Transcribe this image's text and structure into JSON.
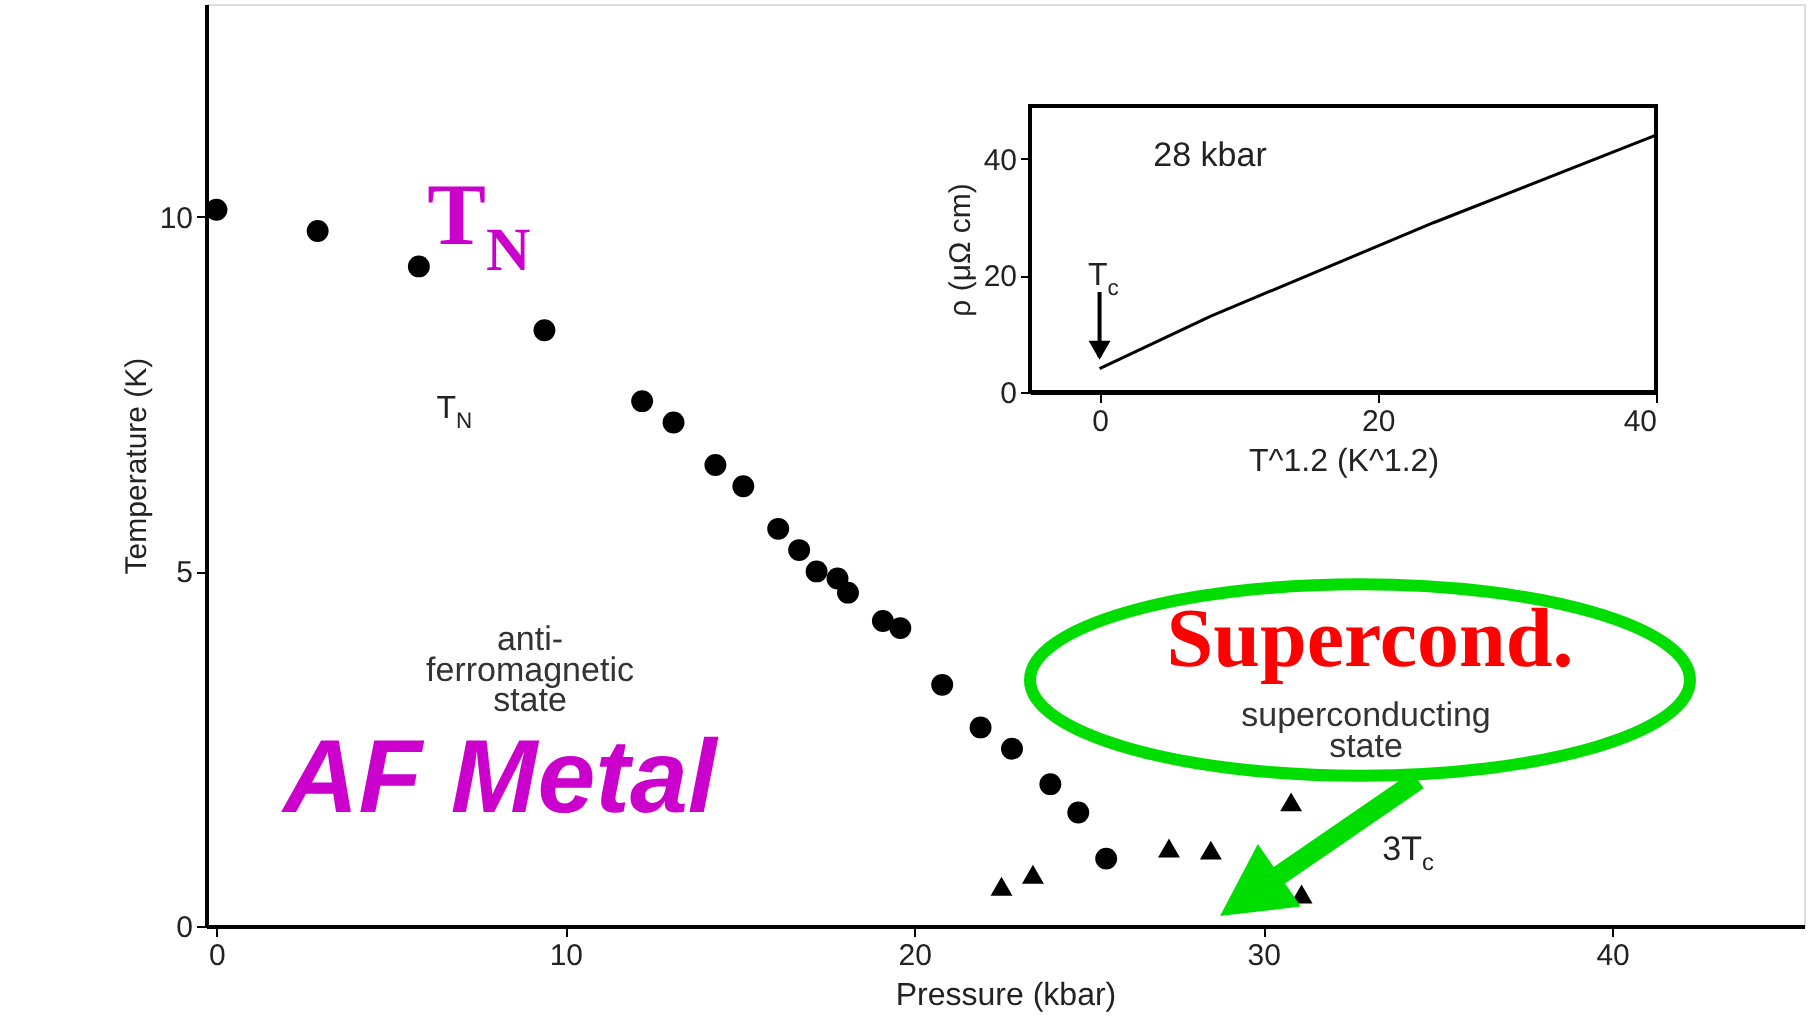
{
  "chart_data": [
    {
      "type": "scatter",
      "xlabel": "Pressure (kbar)",
      "ylabel": "Temperature (K)",
      "xlim": [
        -0.3,
        45.5
      ],
      "xticks": [
        0,
        10,
        20,
        30,
        40
      ],
      "ylim": [
        0,
        13
      ],
      "yticks": [
        0,
        5,
        10
      ],
      "series": [
        {
          "color": "#000000",
          "marker": "circle",
          "x": [
            0,
            2.9,
            5.8,
            9.4,
            12.2,
            13.1,
            14.3,
            15.1,
            16.1,
            16.7,
            17.2,
            17.8,
            18.1,
            19.1,
            19.6,
            20.8,
            21.9,
            22.8,
            23.9,
            24.7,
            25.5
          ],
          "values": [
            10.1,
            9.8,
            9.3,
            8.4,
            7.4,
            7.1,
            6.5,
            6.2,
            5.6,
            5.3,
            5.0,
            4.9,
            4.7,
            4.3,
            4.2,
            3.4,
            2.8,
            2.5,
            2.0,
            1.6,
            0.95
          ]
        },
        {
          "color": "#000000",
          "marker": "triangle",
          "x": [
            22.5,
            23.4,
            27.3,
            28.5,
            30.8,
            31.1
          ],
          "values": [
            0.56,
            0.73,
            1.1,
            1.07,
            1.75,
            0.45
          ]
        }
      ],
      "annotations": [
        "T$_{N}$",
        "AF Metal",
        "Supercond.",
        "T$_{N}$",
        "anti-\nferromagnetic\nstate",
        "superconducting\nstate",
        "3T$_{c}$"
      ]
    },
    {
      "type": "line",
      "xlabel": "T^1.2 (K^1.2)",
      "ylabel": "ρ (μΩ cm)",
      "xlim": [
        -5,
        40
      ],
      "xticks": [
        0,
        20,
        40
      ],
      "ylim": [
        0,
        49
      ],
      "yticks": [
        0,
        20,
        40
      ],
      "x": [
        0,
        8,
        24,
        40
      ],
      "values": [
        4,
        13,
        29,
        44
      ],
      "color": "#000000",
      "annotations": [
        "28 kbar",
        {
          "text": "T$_{c}$",
          "x": 0,
          "y": 6
        }
      ]
    }
  ]
}
